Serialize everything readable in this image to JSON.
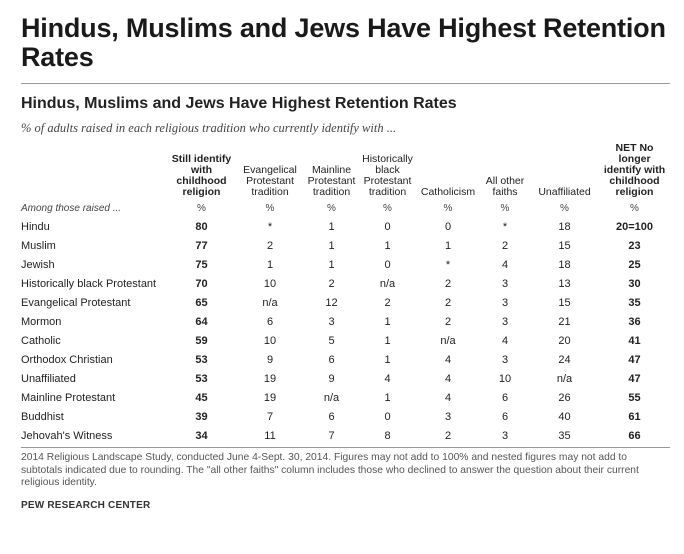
{
  "title": "Hindus, Muslims and Jews Have Highest Retention Rates",
  "subtitle": "Hindus, Muslims and Jews Have Highest Retention Rates",
  "caption": "% of adults raised in each religious tradition who currently identify with ...",
  "columns": [
    "",
    "Still identify with childhood religion",
    "Evangelical Protestant tradition",
    "Mainline Protestant tradition",
    "Historically black Protestant tradition",
    "Catholicism",
    "All other faiths",
    "Unaffiliated",
    "NET No longer identify with childhood religion"
  ],
  "percent_row": [
    "Among those raised ...",
    "%",
    "%",
    "%",
    "%",
    "%",
    "%",
    "%",
    "%"
  ],
  "rows": [
    [
      "Hindu",
      "80",
      "*",
      "1",
      "0",
      "0",
      "*",
      "18",
      "20=100"
    ],
    [
      "Muslim",
      "77",
      "2",
      "1",
      "1",
      "1",
      "2",
      "15",
      "23"
    ],
    [
      "Jewish",
      "75",
      "1",
      "1",
      "0",
      "*",
      "4",
      "18",
      "25"
    ],
    [
      "Historically black Protestant",
      "70",
      "10",
      "2",
      "n/a",
      "2",
      "3",
      "13",
      "30"
    ],
    [
      "Evangelical Protestant",
      "65",
      "n/a",
      "12",
      "2",
      "2",
      "3",
      "15",
      "35"
    ],
    [
      "Mormon",
      "64",
      "6",
      "3",
      "1",
      "2",
      "3",
      "21",
      "36"
    ],
    [
      "Catholic",
      "59",
      "10",
      "5",
      "1",
      "n/a",
      "4",
      "20",
      "41"
    ],
    [
      "Orthodox Christian",
      "53",
      "9",
      "6",
      "1",
      "4",
      "3",
      "24",
      "47"
    ],
    [
      "Unaffiliated",
      "53",
      "19",
      "9",
      "4",
      "4",
      "10",
      "n/a",
      "47"
    ],
    [
      "Mainline Protestant",
      "45",
      "19",
      "n/a",
      "1",
      "4",
      "6",
      "26",
      "55"
    ],
    [
      "Buddhist",
      "39",
      "7",
      "6",
      "0",
      "3",
      "6",
      "40",
      "61"
    ],
    [
      "Jehovah's Witness",
      "34",
      "11",
      "7",
      "8",
      "2",
      "3",
      "35",
      "66"
    ]
  ],
  "notes": "2014 Religious Landscape Study, conducted June 4-Sept. 30, 2014. Figures may not add to 100% and nested figures may not add to subtotals indicated due to rounding. The \"all other faiths\" column includes those who declined to answer the question about their current religious identity.",
  "source": "PEW RESEARCH CENTER"
}
